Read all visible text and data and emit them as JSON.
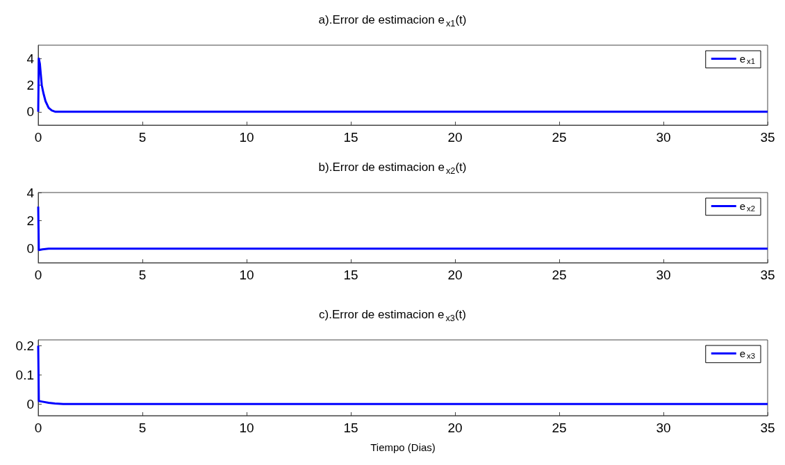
{
  "chart_data": [
    {
      "type": "line",
      "title": "a).Error de estimacion e$_{x1}$(t)",
      "xlim": [
        0,
        35
      ],
      "xticks": [
        0,
        5,
        10,
        15,
        20,
        25,
        30,
        35
      ],
      "ylim": [
        -1,
        5
      ],
      "yticks": [
        0,
        2,
        4
      ],
      "legend": "top right",
      "grid": false,
      "series": [
        {
          "name": "e$_{x1}$",
          "color": "#0000ff",
          "x": [
            0,
            0.03,
            0.08,
            0.17,
            0.25,
            0.35,
            0.5,
            0.65,
            0.83,
            1,
            5,
            10,
            20,
            35
          ],
          "values": [
            0,
            4,
            3.6,
            2,
            1.4,
            0.8,
            0.3,
            0.1,
            0,
            0,
            0,
            0,
            0,
            0
          ]
        }
      ]
    },
    {
      "type": "line",
      "title": "b).Error de estimacion e$_{x2}$(t)",
      "xlim": [
        0,
        35
      ],
      "xticks": [
        0,
        5,
        10,
        15,
        20,
        25,
        30,
        35
      ],
      "ylim": [
        -1,
        4
      ],
      "yticks": [
        0,
        2,
        4
      ],
      "legend": "top right",
      "grid": false,
      "series": [
        {
          "name": "e$_{x2}$",
          "color": "#0000ff",
          "x": [
            0,
            0.03,
            0.2,
            0.5,
            5,
            35
          ],
          "values": [
            3,
            -0.1,
            -0.05,
            0,
            0,
            0
          ]
        }
      ]
    },
    {
      "type": "line",
      "title": "c).Error de estimacion e$_{x3}$(t)",
      "xlabel": "Tiempo (Dias)",
      "xlim": [
        0,
        35
      ],
      "xticks": [
        0,
        5,
        10,
        15,
        20,
        25,
        30,
        35
      ],
      "ylim": [
        -0.04,
        0.22
      ],
      "yticks": [
        0,
        0.1,
        0.2
      ],
      "legend": "top right",
      "grid": false,
      "series": [
        {
          "name": "e$_{x3}$",
          "color": "#0000ff",
          "x": [
            0,
            0.03,
            0.2,
            0.5,
            0.8,
            1.2,
            5,
            35
          ],
          "values": [
            0.2,
            0.01,
            0.008,
            0.004,
            0.002,
            0,
            0,
            0
          ]
        }
      ]
    }
  ]
}
